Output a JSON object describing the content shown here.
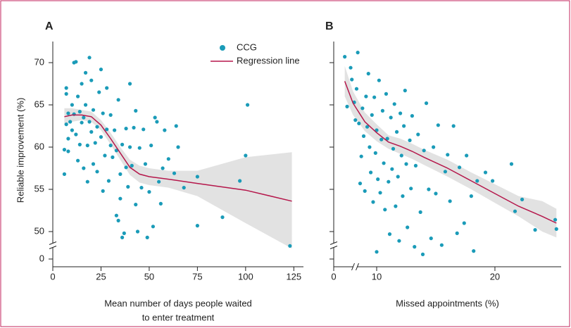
{
  "chart_data": [
    {
      "type": "scatter",
      "panel_label": "A",
      "xlabel": [
        "Mean number of days people waited",
        "to enter treatment"
      ],
      "ylabel": "Reliable improvement (%)",
      "xlim": [
        0,
        130
      ],
      "xticks": [
        0,
        25,
        50,
        75,
        100,
        125
      ],
      "ylim": [
        0,
        72.5
      ],
      "yticks": [
        0,
        50,
        55,
        60,
        65,
        70
      ],
      "x_break": false,
      "y_break": true,
      "show_ytick_labels": true,
      "grid": false,
      "legend": "upper right",
      "series": [
        {
          "name": "CCG",
          "type": "scatter",
          "color": "#1a9bb8",
          "x": [
            6,
            6,
            7,
            7,
            7,
            8,
            8,
            8,
            9,
            10,
            10,
            11,
            11,
            12,
            12,
            13,
            13,
            14,
            14,
            15,
            15,
            16,
            16,
            17,
            17,
            18,
            18,
            19,
            19,
            20,
            20,
            21,
            21,
            22,
            23,
            23,
            24,
            25,
            25,
            26,
            26,
            27,
            28,
            28,
            29,
            30,
            30,
            31,
            32,
            33,
            33,
            34,
            34,
            35,
            35,
            36,
            36,
            37,
            38,
            38,
            39,
            40,
            40,
            41,
            42,
            43,
            43,
            44,
            45,
            46,
            47,
            48,
            49,
            50,
            51,
            52,
            53,
            54,
            55,
            56,
            57,
            58,
            60,
            63,
            64,
            65,
            68,
            75,
            75,
            88,
            97,
            100,
            101,
            123
          ],
          "values": [
            56.8,
            59.7,
            67,
            66.3,
            62.7,
            64,
            61,
            59.5,
            63,
            65,
            62,
            70,
            63.9,
            70.1,
            61.5,
            66,
            58.4,
            64.2,
            60.3,
            67.5,
            62.9,
            63.5,
            57.5,
            68.8,
            65,
            60.2,
            55.9,
            70.6,
            63,
            67.9,
            61.8,
            64.4,
            58,
            60.5,
            62.4,
            57.1,
            66.5,
            69.2,
            61.2,
            54.8,
            64,
            59,
            67,
            62.1,
            56,
            63.8,
            60.2,
            58.8,
            62,
            51.9,
            59.6,
            51.3,
            65.6,
            56.8,
            53.9,
            49.3,
            60.3,
            49.8,
            57.6,
            62.2,
            55.3,
            67.5,
            60,
            57.8,
            62.3,
            64.3,
            53.2,
            50,
            59.9,
            55.2,
            62.1,
            58,
            49.3,
            54.7,
            60.2,
            50.6,
            63.5,
            63,
            55.9,
            53.3,
            57.5,
            62,
            58.6,
            56.9,
            62.5,
            60,
            55.2,
            56.5,
            50.7,
            51.7,
            56,
            59,
            65,
            48.3
          ]
        },
        {
          "name": "Regression line",
          "type": "line",
          "color": "#b5174b",
          "band_color": "#e2e2e2",
          "x": [
            6,
            10,
            15,
            20,
            25,
            30,
            35,
            40,
            45,
            50,
            60,
            75,
            100,
            124
          ],
          "values": [
            63.6,
            63.8,
            63.8,
            63.6,
            62.6,
            61,
            59.3,
            57.6,
            56.8,
            56.5,
            56.2,
            55.7,
            54.9,
            53.6
          ],
          "ci_low": [
            62.6,
            63,
            63.2,
            63,
            62,
            60.3,
            58.5,
            56.7,
            55.8,
            55.5,
            55.2,
            54.2,
            51,
            48
          ],
          "ci_high": [
            64.6,
            64.6,
            64.4,
            64.2,
            63.2,
            61.7,
            60,
            58.5,
            57.8,
            57.5,
            57.2,
            57.2,
            58.8,
            59.4
          ]
        }
      ]
    },
    {
      "type": "scatter",
      "panel_label": "B",
      "xlabel": [
        "Missed appointments (%)"
      ],
      "xlim": [
        0,
        25.6
      ],
      "xticks": [
        0,
        10,
        20
      ],
      "ylim": [
        0,
        72.5
      ],
      "yticks": [
        0,
        50,
        55,
        60,
        65,
        70
      ],
      "x_break": true,
      "y_break": true,
      "show_ytick_labels": false,
      "grid": false,
      "series": [
        {
          "type": "scatter",
          "color": "#1a9bb8",
          "x": [
            7.3,
            7.5,
            7.8,
            7.9,
            8.1,
            8.2,
            8.3,
            8.4,
            8.5,
            8.6,
            8.7,
            8.8,
            8.9,
            9.0,
            9.1,
            9.2,
            9.3,
            9.4,
            9.5,
            9.6,
            9.7,
            9.8,
            9.9,
            10.0,
            10.0,
            10.1,
            10.2,
            10.3,
            10.4,
            10.5,
            10.6,
            10.7,
            10.8,
            10.9,
            11.0,
            11.1,
            11.2,
            11.3,
            11.4,
            11.5,
            11.6,
            11.7,
            11.8,
            11.9,
            12.0,
            12.1,
            12.2,
            12.3,
            12.4,
            12.5,
            12.6,
            12.8,
            12.9,
            13.0,
            13.2,
            13.3,
            13.5,
            13.7,
            13.9,
            14.0,
            14.2,
            14.4,
            14.6,
            14.8,
            15,
            15.2,
            15.5,
            15.8,
            16,
            16.2,
            16.5,
            16.8,
            17,
            17.4,
            17.6,
            18,
            18.2,
            18.5,
            19.2,
            19.8,
            21.4,
            21.7,
            22.3,
            23.4,
            25.1,
            25.2
          ],
          "values": [
            70.7,
            64.8,
            69.4,
            68,
            65.3,
            63.2,
            66.9,
            71.2,
            62.8,
            55.7,
            58.9,
            64.6,
            61.3,
            54.8,
            66,
            62.4,
            68.7,
            60,
            57,
            63.8,
            53.5,
            65.9,
            59.3,
            47.6,
            62,
            56.2,
            67.9,
            54.6,
            60.9,
            64.3,
            58.1,
            52.6,
            66.3,
            61,
            55.9,
            49.7,
            63.5,
            57.4,
            59.8,
            65.1,
            53,
            61.8,
            56.5,
            48.9,
            64,
            59,
            54.2,
            62.5,
            66.7,
            58,
            50.5,
            60.8,
            55.1,
            63.7,
            48.2,
            57.8,
            61.5,
            52.3,
            47.3,
            59.6,
            65.2,
            55,
            49.2,
            60,
            54.5,
            62.6,
            48.4,
            57.1,
            59.1,
            53.6,
            62.5,
            49.8,
            57.6,
            51,
            59,
            54.2,
            47.7,
            56,
            57,
            56,
            58,
            52.4,
            53.8,
            50.2,
            51.4,
            50.3
          ]
        },
        {
          "type": "line",
          "color": "#b5174b",
          "band_color": "#e2e2e2",
          "x": [
            7.3,
            8,
            9,
            10,
            11,
            12,
            13,
            14,
            16,
            18,
            20,
            22,
            24,
            25.2
          ],
          "values": [
            67.8,
            65.2,
            63,
            61.7,
            60.6,
            60.1,
            59.5,
            58.8,
            57.5,
            56,
            54.5,
            53,
            51.8,
            51
          ],
          "ci_low": [
            66,
            63.8,
            61.9,
            60.7,
            59.8,
            59.2,
            58.6,
            57.9,
            56.5,
            55,
            53.4,
            51.8,
            50,
            49.3
          ],
          "ci_high": [
            69.6,
            66.6,
            64.1,
            62.7,
            61.4,
            61,
            60.4,
            59.7,
            58.5,
            57,
            55.6,
            54.2,
            53.6,
            52.7
          ]
        }
      ]
    }
  ]
}
